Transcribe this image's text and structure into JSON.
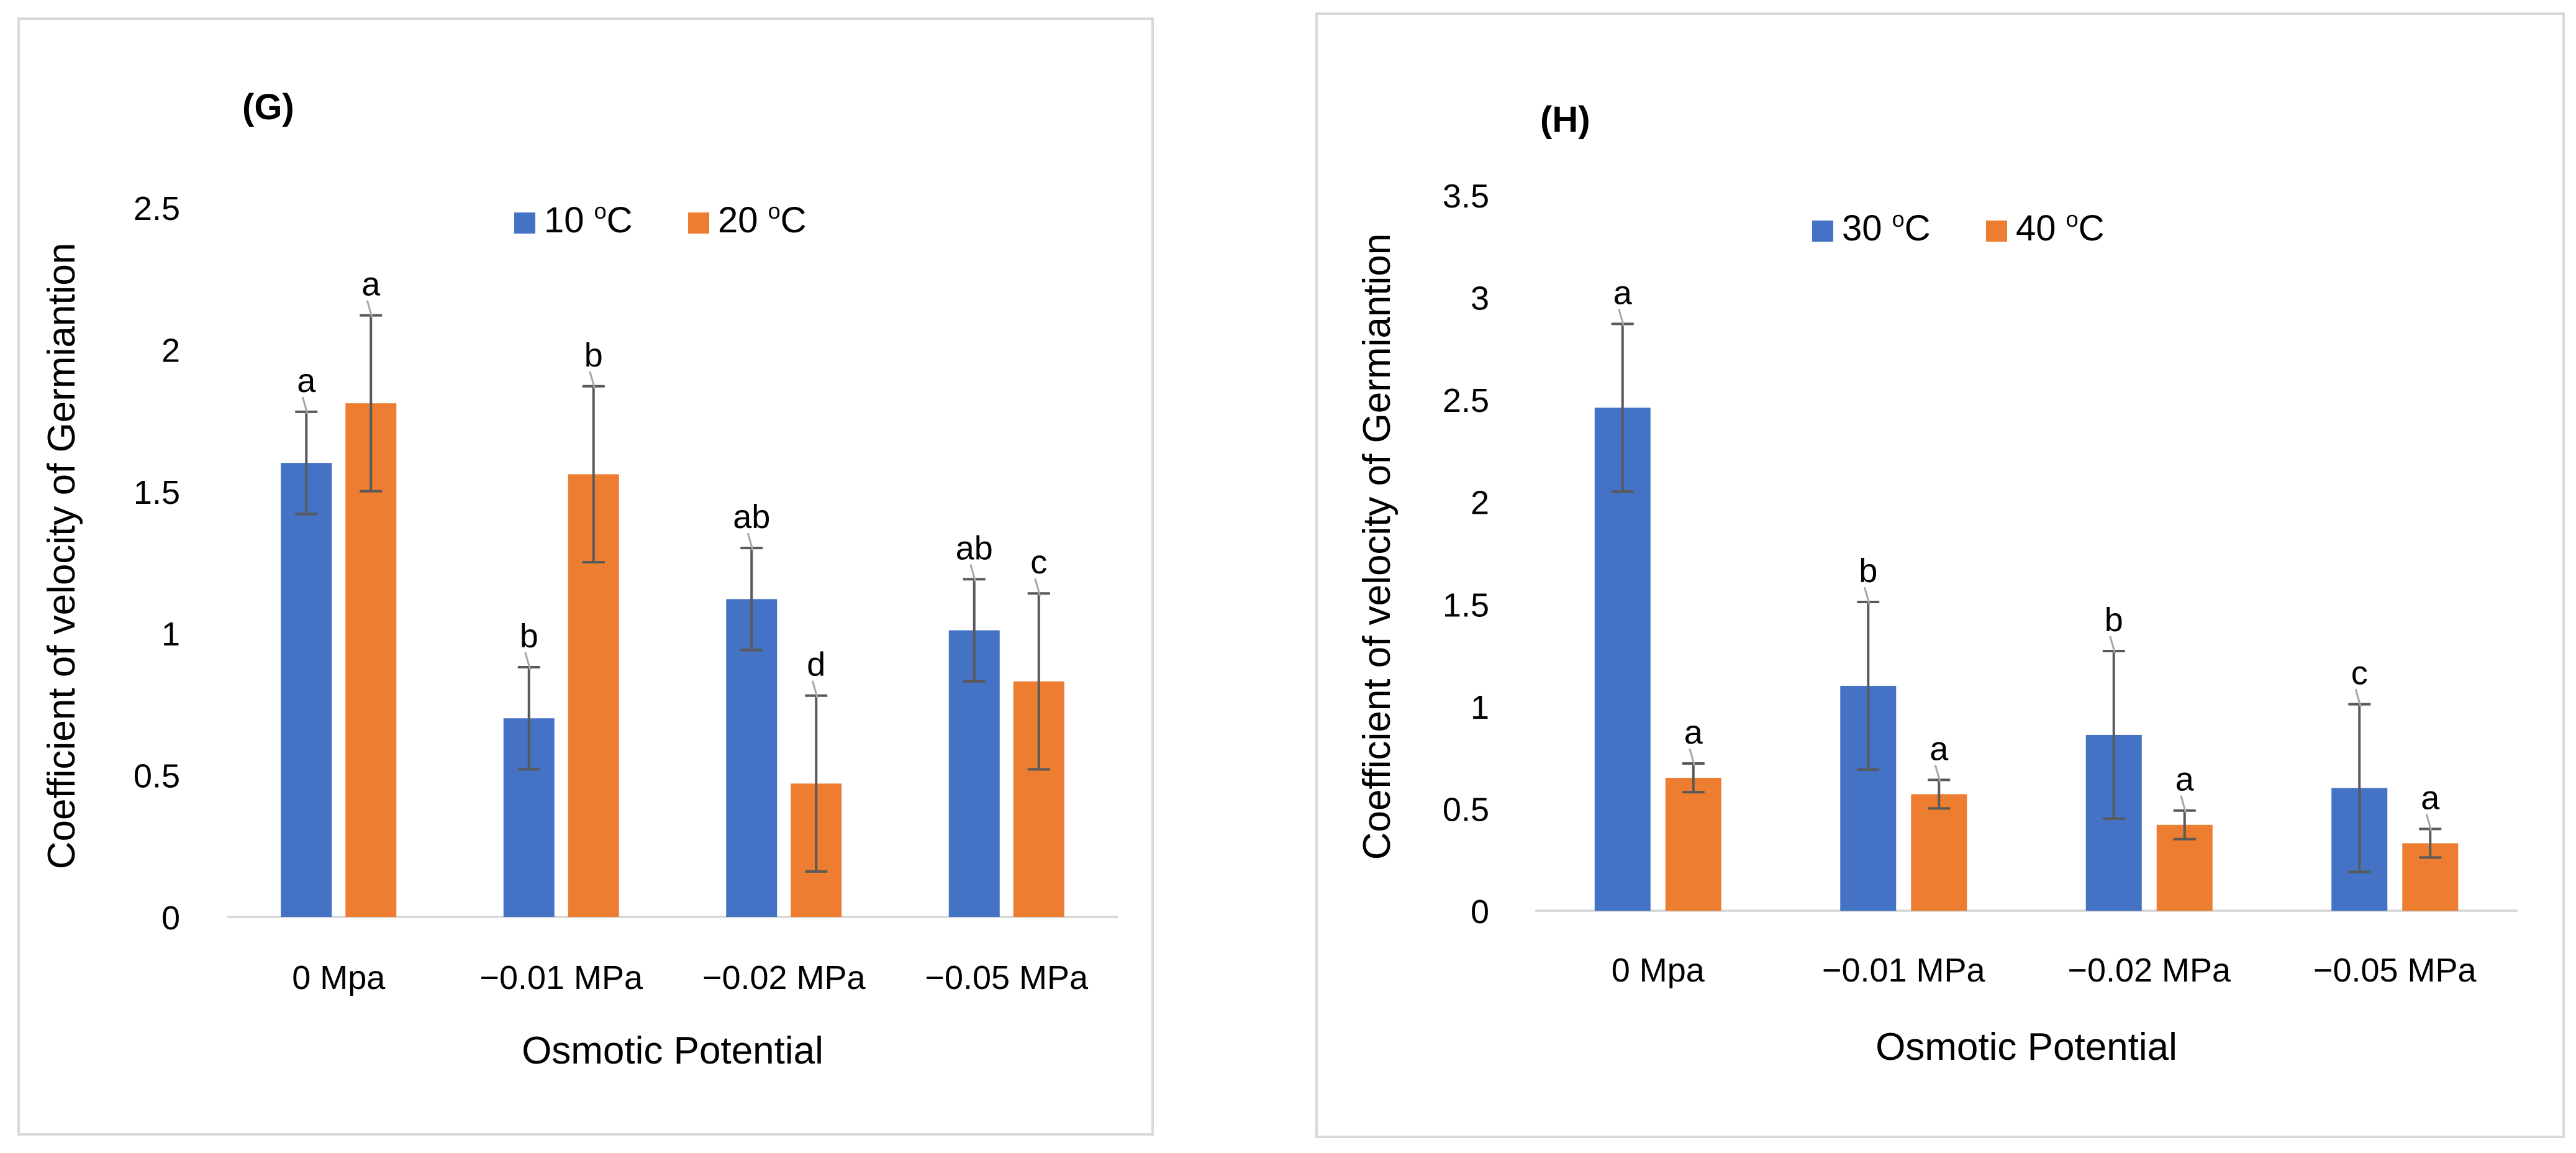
{
  "chart_data": [
    {
      "type": "bar",
      "panel_label": "(G)",
      "title": "",
      "xlabel": "Osmotic Potential",
      "ylabel": "Coefficient of velocity of Germiantion",
      "ylim": [
        0,
        2.5
      ],
      "yticks": [
        "0",
        "0.5",
        "1",
        "1.5",
        "2",
        "2.5"
      ],
      "grid": false,
      "legend_position": "top-center",
      "categories": [
        "0 Mpa",
        "−0.01 MPa",
        "−0.02 MPa",
        "−0.05 MPa"
      ],
      "series": [
        {
          "name": "10 ºC",
          "legend_base": "10 ",
          "legend_sup": "o",
          "legend_unit": "C",
          "color": "#4472c4",
          "values": [
            1.6,
            0.7,
            1.12,
            1.01
          ],
          "errors": [
            0.18,
            0.18,
            0.18,
            0.18
          ],
          "letters": [
            "a",
            "b",
            "ab",
            "ab"
          ]
        },
        {
          "name": "20 ºC",
          "legend_base": "20 ",
          "legend_sup": "o",
          "legend_unit": "C",
          "color": "#ed7d31",
          "values": [
            1.81,
            1.56,
            0.47,
            0.83
          ],
          "errors": [
            0.31,
            0.31,
            0.31,
            0.31
          ],
          "letters": [
            "a",
            "b",
            "d",
            "c"
          ]
        }
      ]
    },
    {
      "type": "bar",
      "panel_label": "(H)",
      "title": "",
      "xlabel": "Osmotic Potential",
      "ylabel": "Coefficient of velocity of Germiantion",
      "ylim": [
        0,
        3.5
      ],
      "yticks": [
        "0",
        "0.5",
        "1",
        "1.5",
        "2",
        "2.5",
        "3",
        "3.5"
      ],
      "grid": false,
      "legend_position": "top-center",
      "categories": [
        "0 Mpa",
        "−0.01 MPa",
        "−0.02 MPa",
        "−0.05 MPa"
      ],
      "series": [
        {
          "name": "30 ºC",
          "legend_base": "30 ",
          "legend_sup": "o",
          "legend_unit": "C",
          "color": "#4472c4",
          "values": [
            2.46,
            1.1,
            0.86,
            0.6
          ],
          "errors": [
            0.41,
            0.41,
            0.41,
            0.41
          ],
          "letters": [
            "a",
            "b",
            "b",
            "c"
          ]
        },
        {
          "name": "40 ºC",
          "legend_base": "40 ",
          "legend_sup": "o",
          "legend_unit": "C",
          "color": "#ed7d31",
          "values": [
            0.65,
            0.57,
            0.42,
            0.33
          ],
          "errors": [
            0.07,
            0.07,
            0.07,
            0.07
          ],
          "letters": [
            "a",
            "a",
            "a",
            "a"
          ]
        }
      ]
    }
  ]
}
